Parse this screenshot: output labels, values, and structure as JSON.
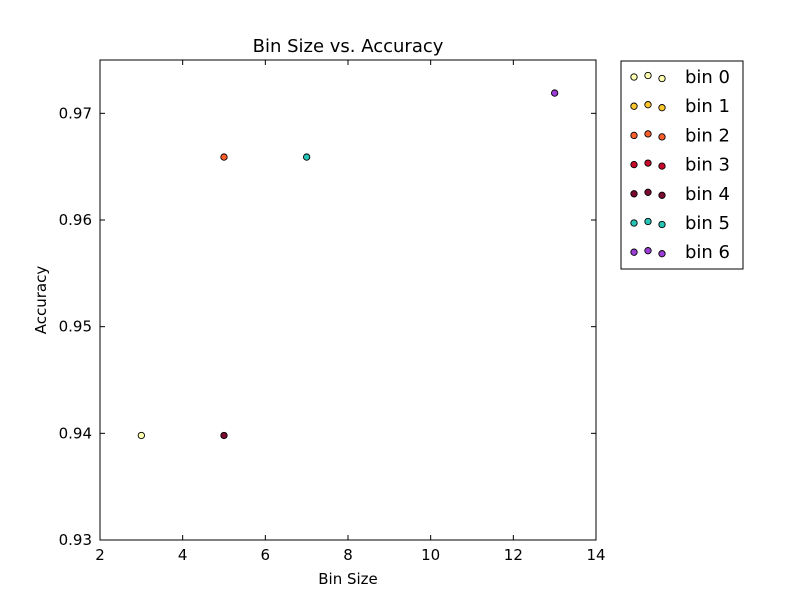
{
  "chart_data": {
    "type": "scatter",
    "title": "Bin Size vs. Accuracy",
    "xlabel": "Bin Size",
    "ylabel": "Accuracy",
    "xlim": [
      2,
      14
    ],
    "ylim": [
      0.93,
      0.975
    ],
    "xticks": [
      "2",
      "4",
      "6",
      "8",
      "10",
      "12",
      "14"
    ],
    "yticks": [
      "0.93",
      "0.94",
      "0.95",
      "0.96",
      "0.97"
    ],
    "grid": false,
    "legend_position": "outside-top-right",
    "series": [
      {
        "name": "bin 0",
        "color": "#ffffb2",
        "points": [
          {
            "x": 3,
            "y": 0.9398
          }
        ]
      },
      {
        "name": "bin 1",
        "color": "#fec82e",
        "points": []
      },
      {
        "name": "bin 2",
        "color": "#fc5f2c",
        "points": [
          {
            "x": 5,
            "y": 0.9659
          }
        ]
      },
      {
        "name": "bin 3",
        "color": "#c8082a",
        "points": []
      },
      {
        "name": "bin 4",
        "color": "#7a0b2e",
        "points": [
          {
            "x": 5,
            "y": 0.9398
          }
        ]
      },
      {
        "name": "bin 5",
        "color": "#27c3b4",
        "points": [
          {
            "x": 7,
            "y": 0.9659
          }
        ]
      },
      {
        "name": "bin 6",
        "color": "#9b3dd6",
        "points": [
          {
            "x": 13,
            "y": 0.9719
          }
        ]
      }
    ]
  }
}
